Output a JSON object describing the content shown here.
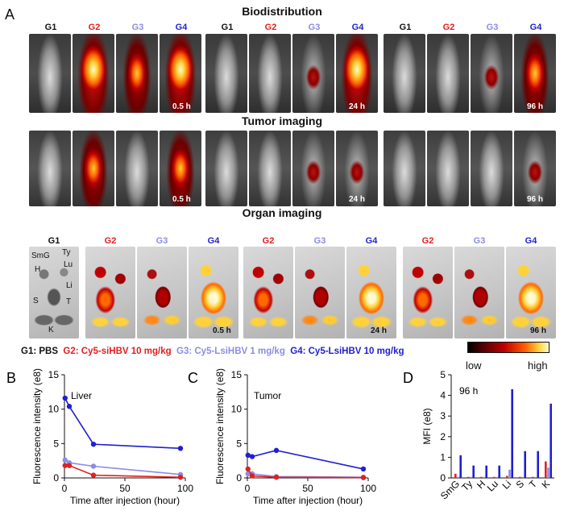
{
  "figure": {
    "panel_a_letter": "A",
    "biodistribution": {
      "title": "Biodistribution",
      "groups": [
        "G1",
        "G2",
        "G3",
        "G4",
        "G1",
        "G2",
        "G3",
        "G4",
        "G1",
        "G2",
        "G3",
        "G4"
      ],
      "timepoints": [
        "0.5 h",
        "24 h",
        "96 h"
      ]
    },
    "tumor_imaging": {
      "title": "Tumor imaging",
      "timepoints": [
        "0.5 h",
        "24 h",
        "96 h"
      ]
    },
    "organ_imaging": {
      "title": "Organ imaging",
      "groups": [
        "G1",
        "G2",
        "G3",
        "G4",
        "G2",
        "G3",
        "G4",
        "G2",
        "G3",
        "G4"
      ],
      "organ_labels": [
        "SmG",
        "Ty",
        "Lu",
        "H",
        "Li",
        "S",
        "T",
        "K"
      ],
      "timepoints": [
        "0.5 h",
        "24 h",
        "96 h"
      ]
    },
    "legend": {
      "g1": "G1: PBS",
      "g2": "G2: Cy5-siHBV 10 mg/kg",
      "g3": "G3: Cy5-LsiHBV 1 mg/kg",
      "g4": "G4: Cy5-LsiHBV 10 mg/kg",
      "low": "low",
      "high": "high"
    },
    "colors": {
      "g1": "#111111",
      "g2": "#e02020",
      "g3": "#8c8ce6",
      "g4": "#1f1fd0"
    }
  },
  "chart_data": [
    {
      "panel": "B",
      "type": "line",
      "annotation": "Liver",
      "xlabel": "Time after injection (hour)",
      "ylabel": "Fluorescence intensity (e8)",
      "xlim": [
        0,
        100
      ],
      "ylim": [
        0,
        15
      ],
      "xticks": [
        0,
        50,
        100
      ],
      "yticks": [
        0,
        5,
        10,
        15
      ],
      "x": [
        0.5,
        4,
        24,
        96
      ],
      "series": [
        {
          "name": "G4",
          "color": "#1f1fd0",
          "values": [
            11.6,
            10.4,
            4.9,
            4.3
          ]
        },
        {
          "name": "G3",
          "color": "#8c8ce6",
          "values": [
            2.6,
            2.2,
            1.7,
            0.5
          ]
        },
        {
          "name": "G2",
          "color": "#e02020",
          "values": [
            1.8,
            1.8,
            0.4,
            0.1
          ]
        }
      ]
    },
    {
      "panel": "C",
      "type": "line",
      "annotation": "Tumor",
      "xlabel": "Time after injection (hour)",
      "ylabel": "Fluorescence intensity (e8)",
      "xlim": [
        0,
        100
      ],
      "ylim": [
        0,
        15
      ],
      "xticks": [
        0,
        50,
        100
      ],
      "yticks": [
        0,
        5,
        10,
        15
      ],
      "x": [
        0.5,
        4,
        24,
        96
      ],
      "series": [
        {
          "name": "G4",
          "color": "#1f1fd0",
          "values": [
            3.3,
            3.1,
            4.0,
            1.3
          ]
        },
        {
          "name": "G3",
          "color": "#8c8ce6",
          "values": [
            0.6,
            0.6,
            0.2,
            0.1
          ]
        },
        {
          "name": "G2",
          "color": "#e02020",
          "values": [
            1.3,
            0.3,
            0.1,
            0.05
          ]
        }
      ]
    },
    {
      "panel": "D",
      "type": "bar",
      "annotation": "96 h",
      "xlabel": "",
      "ylabel": "MFI (e8)",
      "ylim": [
        0,
        5
      ],
      "yticks": [
        0,
        1,
        2,
        3,
        4,
        5
      ],
      "categories": [
        "SmG",
        "Ty",
        "H",
        "Lu",
        "Li",
        "S",
        "T",
        "K"
      ],
      "series": [
        {
          "name": "G2",
          "color": "#e02020",
          "values": [
            0.2,
            0.05,
            0.05,
            0.05,
            0.1,
            0.05,
            0.05,
            0.8
          ]
        },
        {
          "name": "G3",
          "color": "#8c8ce6",
          "values": [
            0.05,
            0.05,
            0.05,
            0.05,
            0.4,
            0.05,
            0.05,
            0.5
          ]
        },
        {
          "name": "G4",
          "color": "#1f1fd0",
          "values": [
            1.1,
            0.6,
            0.6,
            0.6,
            4.3,
            1.3,
            1.3,
            3.6
          ]
        }
      ]
    }
  ]
}
